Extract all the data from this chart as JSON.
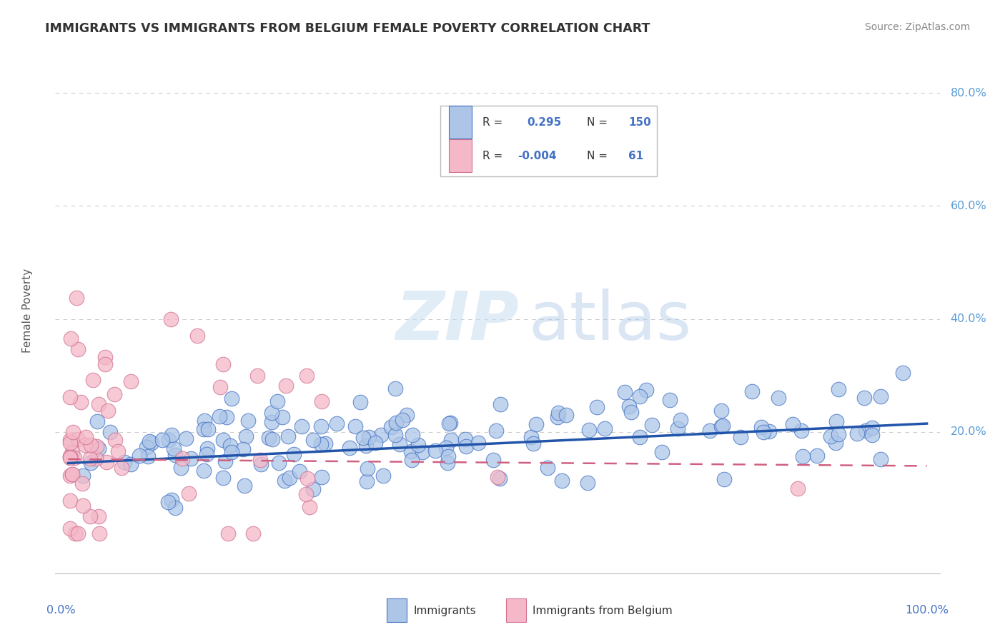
{
  "title": "IMMIGRANTS VS IMMIGRANTS FROM BELGIUM FEMALE POVERTY CORRELATION CHART",
  "source_text": "Source: ZipAtlas.com",
  "ylabel": "Female Poverty",
  "watermark_zip": "ZIP",
  "watermark_atlas": "atlas",
  "legend_R1": "0.295",
  "legend_N1": "150",
  "legend_R2": "-0.004",
  "legend_N2": "61",
  "blue_face_color": "#adc6e8",
  "blue_edge_color": "#4472c4",
  "pink_face_color": "#f4b8c8",
  "pink_edge_color": "#d07090",
  "blue_trend_color": "#2255aa",
  "pink_trend_color": "#d06080",
  "grid_color": "#cccccc",
  "axis_label_color": "#4472c4",
  "right_label_color": "#5b9bd5",
  "title_color": "#333333",
  "source_color": "#888888",
  "ylabel_color": "#555555",
  "legend_text_dark": "#333333",
  "legend_val_color": "#4472c4",
  "background_color": "#ffffff",
  "y_ticks": [
    0.2,
    0.4,
    0.6,
    0.8
  ],
  "y_tick_labels": [
    "20.0%",
    "40.0%",
    "60.0%",
    "80.0%"
  ],
  "xlim": [
    -0.015,
    1.015
  ],
  "ylim": [
    -0.05,
    0.88
  ],
  "blue_trend_x0": 0.0,
  "blue_trend_x1": 1.0,
  "blue_trend_y0": 0.145,
  "blue_trend_y1": 0.215,
  "pink_trend_x0": 0.0,
  "pink_trend_x1": 1.0,
  "pink_trend_y0": 0.152,
  "pink_trend_y1": 0.14
}
